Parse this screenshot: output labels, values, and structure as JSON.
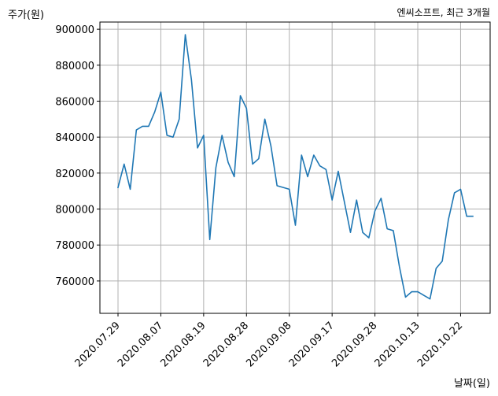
{
  "chart_data": {
    "type": "line",
    "title": "엔씨소프트, 최근 3개월",
    "xlabel": "날짜(일)",
    "ylabel": "주가(원)",
    "ylim": [
      742000,
      904000
    ],
    "yticks": [
      760000,
      780000,
      800000,
      820000,
      840000,
      860000,
      880000,
      900000
    ],
    "xtick_labels": [
      "2020.07.29",
      "2020.08.07",
      "2020.08.19",
      "2020.08.28",
      "2020.09.08",
      "2020.09.17",
      "2020.09.28",
      "2020.10.13",
      "2020.10.22"
    ],
    "grid": true,
    "series": [
      {
        "color": "#1f77b4",
        "values": [
          812000,
          825000,
          811000,
          844000,
          846000,
          846000,
          854000,
          865000,
          841000,
          840000,
          850000,
          897000,
          872000,
          834000,
          841000,
          783000,
          823000,
          841000,
          826000,
          818000,
          863000,
          856000,
          825000,
          828000,
          850000,
          835000,
          813000,
          812000,
          811000,
          791000,
          830000,
          818000,
          830000,
          824000,
          822000,
          805000,
          821000,
          804000,
          787000,
          805000,
          787000,
          784000,
          799000,
          806000,
          789000,
          788000,
          768000,
          751000,
          754000,
          754000,
          752000,
          750000,
          767000,
          771000,
          794000,
          809000,
          811000,
          796000,
          796000
        ]
      }
    ]
  }
}
